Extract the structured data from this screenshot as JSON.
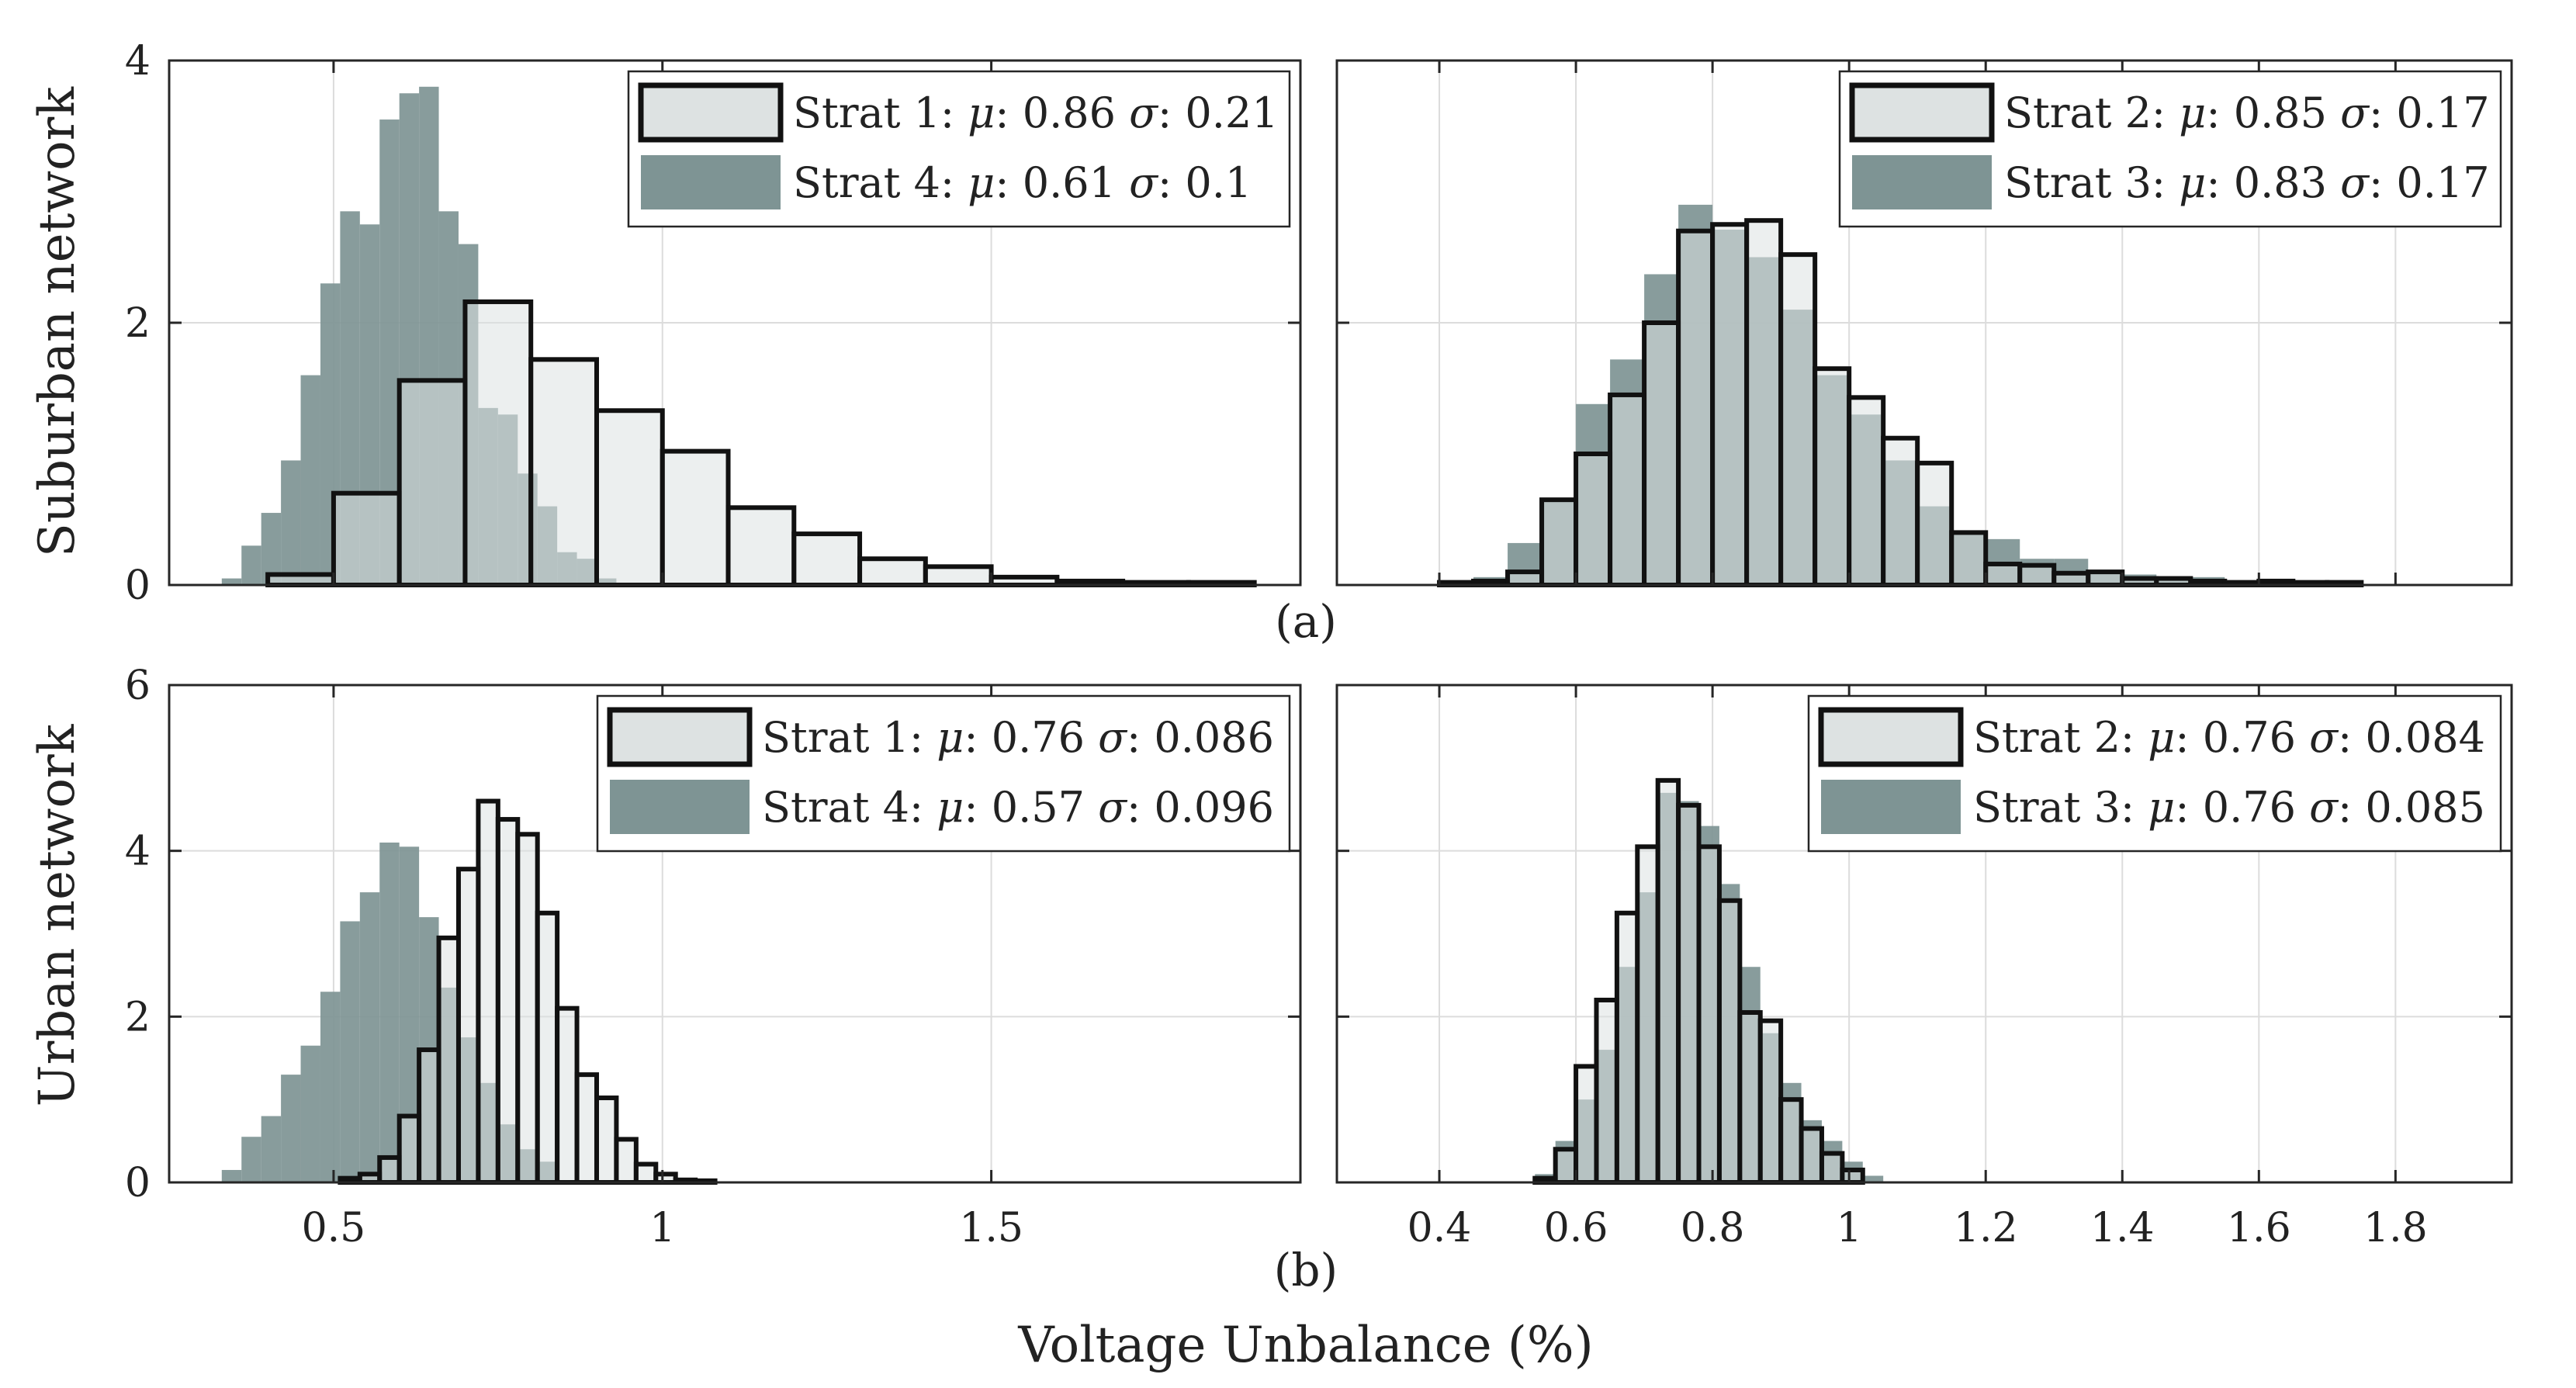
{
  "figure": {
    "xlabel": "Voltage Unbalance (%)",
    "row_labels": [
      "Suburban network",
      "Urban network"
    ],
    "subplot_labels": [
      "(a)",
      "(b)"
    ]
  },
  "colors": {
    "outlined_fill": "#dde2e2",
    "outlined_edge": "#111111",
    "solid_fill": "#7e9494",
    "overlap_fill": "#7b8f8f"
  },
  "chart_data": [
    {
      "id": "suburban-strat1-strat4",
      "type": "histogram",
      "row": 0,
      "col": 0,
      "xlim": [
        0.25,
        1.97
      ],
      "ylim": [
        0,
        4
      ],
      "yticks": [
        0,
        2,
        4
      ],
      "xticks": [
        0.5,
        1,
        1.5
      ],
      "show_xtick_labels": false,
      "show_ytick_labels": true,
      "ylabel": "Suburban network",
      "sublabel": "(a)",
      "series": [
        {
          "name": "Strat 4",
          "label_prefix": "Strat 4: ",
          "mu": "0.61",
          "sigma": "0.1",
          "style": "solid",
          "edges": [
            0.33,
            0.36,
            0.39,
            0.42,
            0.45,
            0.48,
            0.51,
            0.54,
            0.57,
            0.6,
            0.63,
            0.66,
            0.69,
            0.72,
            0.75,
            0.78,
            0.81,
            0.84,
            0.87,
            0.9,
            0.93
          ],
          "values": [
            0.05,
            0.3,
            0.55,
            0.95,
            1.6,
            2.3,
            2.85,
            2.75,
            3.55,
            3.75,
            3.8,
            2.85,
            2.6,
            1.35,
            1.3,
            0.85,
            0.6,
            0.25,
            0.2,
            0.05
          ]
        },
        {
          "name": "Strat 1",
          "label_prefix": "Strat 1: ",
          "mu": "0.86",
          "sigma": "0.21",
          "style": "outlined",
          "edges": [
            0.4,
            0.5,
            0.6,
            0.7,
            0.8,
            0.9,
            1.0,
            1.1,
            1.2,
            1.3,
            1.4,
            1.5,
            1.6,
            1.7,
            1.8,
            1.9
          ],
          "values": [
            0.08,
            0.7,
            1.56,
            2.16,
            1.72,
            1.33,
            1.02,
            0.59,
            0.39,
            0.2,
            0.14,
            0.06,
            0.03,
            0.02,
            0.02
          ]
        }
      ],
      "legend": {
        "position": "top-right",
        "order": [
          "Strat 1",
          "Strat 4"
        ]
      }
    },
    {
      "id": "suburban-strat2-strat3",
      "type": "histogram",
      "row": 0,
      "col": 1,
      "xlim": [
        0.25,
        1.97
      ],
      "ylim": [
        0,
        4
      ],
      "yticks": [
        0,
        2,
        4
      ],
      "xticks": [
        0.4,
        0.6,
        0.8,
        1,
        1.2,
        1.4,
        1.6,
        1.8
      ],
      "show_xtick_labels": false,
      "show_ytick_labels": false,
      "series": [
        {
          "name": "Strat 3",
          "label_prefix": "Strat 3: ",
          "mu": "0.83",
          "sigma": "0.17",
          "style": "solid",
          "edges": [
            0.4,
            0.45,
            0.5,
            0.55,
            0.6,
            0.65,
            0.7,
            0.75,
            0.8,
            0.85,
            0.9,
            0.95,
            1.0,
            1.05,
            1.1,
            1.15,
            1.2,
            1.25,
            1.3,
            1.35,
            1.4,
            1.45,
            1.5,
            1.55,
            1.6,
            1.65,
            1.7,
            1.75
          ],
          "values": [
            0.03,
            0.06,
            0.32,
            0.66,
            1.38,
            1.72,
            2.37,
            2.9,
            2.71,
            2.5,
            2.1,
            1.6,
            1.3,
            0.95,
            0.6,
            0.4,
            0.35,
            0.2,
            0.2,
            0.1,
            0.08,
            0.06,
            0.06,
            0.03,
            0.03,
            0.02,
            0.02
          ]
        },
        {
          "name": "Strat 2",
          "label_prefix": "Strat 2: ",
          "mu": "0.85",
          "sigma": "0.17",
          "style": "outlined",
          "edges": [
            0.4,
            0.45,
            0.5,
            0.55,
            0.6,
            0.65,
            0.7,
            0.75,
            0.8,
            0.85,
            0.9,
            0.95,
            1.0,
            1.05,
            1.1,
            1.15,
            1.2,
            1.25,
            1.3,
            1.35,
            1.4,
            1.45,
            1.5,
            1.55,
            1.6,
            1.65,
            1.7,
            1.75
          ],
          "values": [
            0.02,
            0.03,
            0.1,
            0.65,
            1.0,
            1.45,
            2.0,
            2.7,
            2.75,
            2.78,
            2.52,
            1.65,
            1.43,
            1.12,
            0.93,
            0.4,
            0.16,
            0.15,
            0.09,
            0.1,
            0.05,
            0.05,
            0.03,
            0.02,
            0.03,
            0.02,
            0.02
          ]
        }
      ],
      "legend": {
        "position": "top-right",
        "order": [
          "Strat 2",
          "Strat 3"
        ]
      }
    },
    {
      "id": "urban-strat1-strat4",
      "type": "histogram",
      "row": 1,
      "col": 0,
      "xlim": [
        0.25,
        1.97
      ],
      "ylim": [
        0,
        6
      ],
      "yticks": [
        0,
        2,
        4,
        6
      ],
      "xticks": [
        0.5,
        1,
        1.5
      ],
      "show_xtick_labels": true,
      "show_ytick_labels": true,
      "ylabel": "Urban network",
      "sublabel": "(b)",
      "series": [
        {
          "name": "Strat 4",
          "label_prefix": "Strat 4: ",
          "mu": "0.57",
          "sigma": "0.096",
          "style": "solid",
          "edges": [
            0.33,
            0.36,
            0.39,
            0.42,
            0.45,
            0.48,
            0.51,
            0.54,
            0.57,
            0.6,
            0.63,
            0.66,
            0.69,
            0.72,
            0.75,
            0.78,
            0.81,
            0.84
          ],
          "values": [
            0.15,
            0.55,
            0.8,
            1.3,
            1.65,
            2.3,
            3.15,
            3.5,
            4.1,
            4.05,
            3.2,
            2.35,
            1.75,
            1.2,
            0.7,
            0.4,
            0.25
          ]
        },
        {
          "name": "Strat 1",
          "label_prefix": "Strat 1: ",
          "mu": "0.76",
          "sigma": "0.086",
          "style": "outlined",
          "edges": [
            0.51,
            0.54,
            0.57,
            0.6,
            0.63,
            0.66,
            0.69,
            0.72,
            0.75,
            0.78,
            0.81,
            0.84,
            0.87,
            0.9,
            0.93,
            0.96,
            0.99,
            1.02,
            1.05,
            1.08
          ],
          "values": [
            0.05,
            0.1,
            0.3,
            0.8,
            1.6,
            2.95,
            3.78,
            4.6,
            4.38,
            4.2,
            3.25,
            2.1,
            1.3,
            1.02,
            0.52,
            0.22,
            0.1,
            0.03,
            0.02
          ]
        }
      ],
      "legend": {
        "position": "top-right",
        "order": [
          "Strat 1",
          "Strat 4"
        ]
      }
    },
    {
      "id": "urban-strat2-strat3",
      "type": "histogram",
      "row": 1,
      "col": 1,
      "xlim": [
        0.25,
        1.97
      ],
      "ylim": [
        0,
        6
      ],
      "yticks": [
        0,
        2,
        4,
        6
      ],
      "xticks": [
        0.4,
        0.6,
        0.8,
        1,
        1.2,
        1.4,
        1.6,
        1.8
      ],
      "show_xtick_labels": true,
      "show_ytick_labels": false,
      "series": [
        {
          "name": "Strat 3",
          "label_prefix": "Strat 3: ",
          "mu": "0.76",
          "sigma": "0.085",
          "style": "solid",
          "edges": [
            0.54,
            0.57,
            0.6,
            0.63,
            0.66,
            0.69,
            0.72,
            0.75,
            0.78,
            0.81,
            0.84,
            0.87,
            0.9,
            0.93,
            0.96,
            0.99,
            1.02,
            1.05
          ],
          "values": [
            0.1,
            0.5,
            1.0,
            1.6,
            2.6,
            3.5,
            4.7,
            4.6,
            4.3,
            3.6,
            2.6,
            1.8,
            1.2,
            0.75,
            0.5,
            0.25,
            0.08
          ]
        },
        {
          "name": "Strat 2",
          "label_prefix": "Strat 2: ",
          "mu": "0.76",
          "sigma": "0.084",
          "style": "outlined",
          "edges": [
            0.54,
            0.57,
            0.6,
            0.63,
            0.66,
            0.69,
            0.72,
            0.75,
            0.78,
            0.81,
            0.84,
            0.87,
            0.9,
            0.93,
            0.96,
            0.99,
            1.02
          ],
          "values": [
            0.05,
            0.4,
            1.4,
            2.2,
            3.25,
            4.05,
            4.85,
            4.55,
            4.05,
            3.4,
            2.05,
            1.95,
            1.0,
            0.65,
            0.35,
            0.15
          ]
        }
      ],
      "legend": {
        "position": "top-right",
        "order": [
          "Strat 2",
          "Strat 3"
        ]
      }
    }
  ]
}
